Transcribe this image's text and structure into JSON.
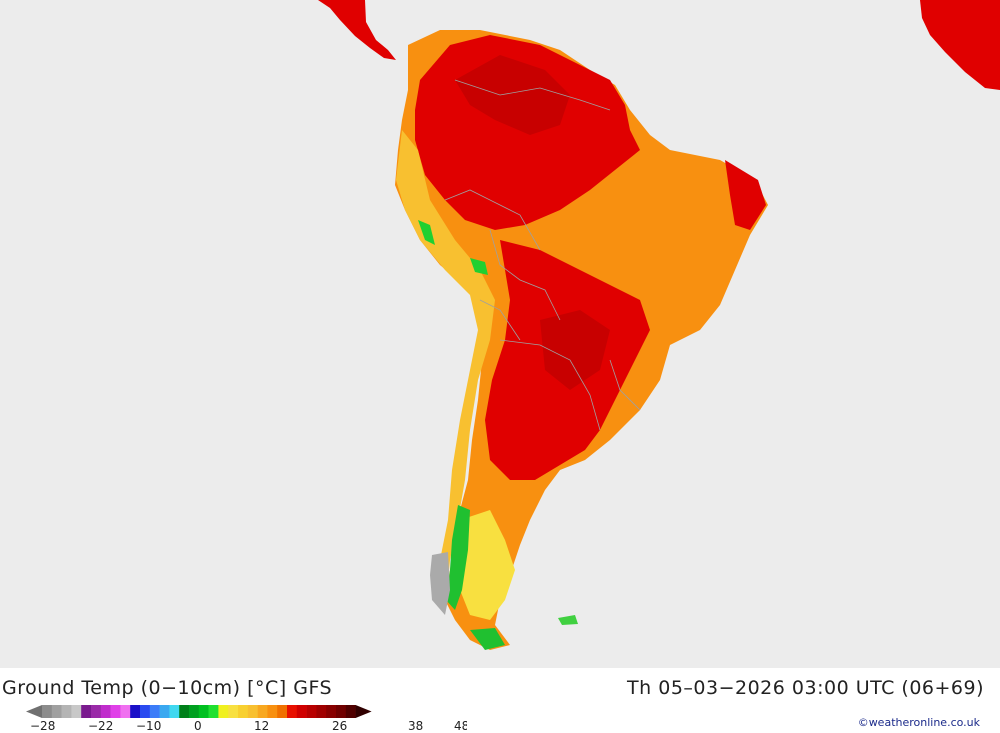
{
  "title": {
    "left": "Ground Temp (0−10cm) [°C] GFS",
    "right": "Th 05–03−2026 03:00 UTC (06+69)"
  },
  "legend": {
    "ticks": [
      "−28",
      "−22",
      "−10",
      "0",
      "12",
      "26",
      "38",
      "48"
    ],
    "colors": [
      "#8c8c8c",
      "#a0a0a0",
      "#b4b4b4",
      "#c8c8c8",
      "#7a1a8e",
      "#9a2aa8",
      "#c02ccc",
      "#e040e8",
      "#f070f0",
      "#1a10c8",
      "#2a4af0",
      "#3c7cf8",
      "#3aa8f0",
      "#40d8f0",
      "#00801a",
      "#00a020",
      "#00c020",
      "#20e030",
      "#f0f020",
      "#f8e040",
      "#f8d030",
      "#f8c030",
      "#f8a820",
      "#f89010",
      "#f07000",
      "#e81000",
      "#d00000",
      "#b80000",
      "#a00000",
      "#880000",
      "#700000",
      "#500000"
    ]
  },
  "credit": "©weatheronline.co.uk",
  "map": {
    "region": "South America",
    "ocean_color": "#ececec",
    "land_colors": [
      "#e00000",
      "#f06000",
      "#f89010",
      "#f8b040",
      "#f8e040",
      "#40d040",
      "#aaaaaa"
    ]
  }
}
